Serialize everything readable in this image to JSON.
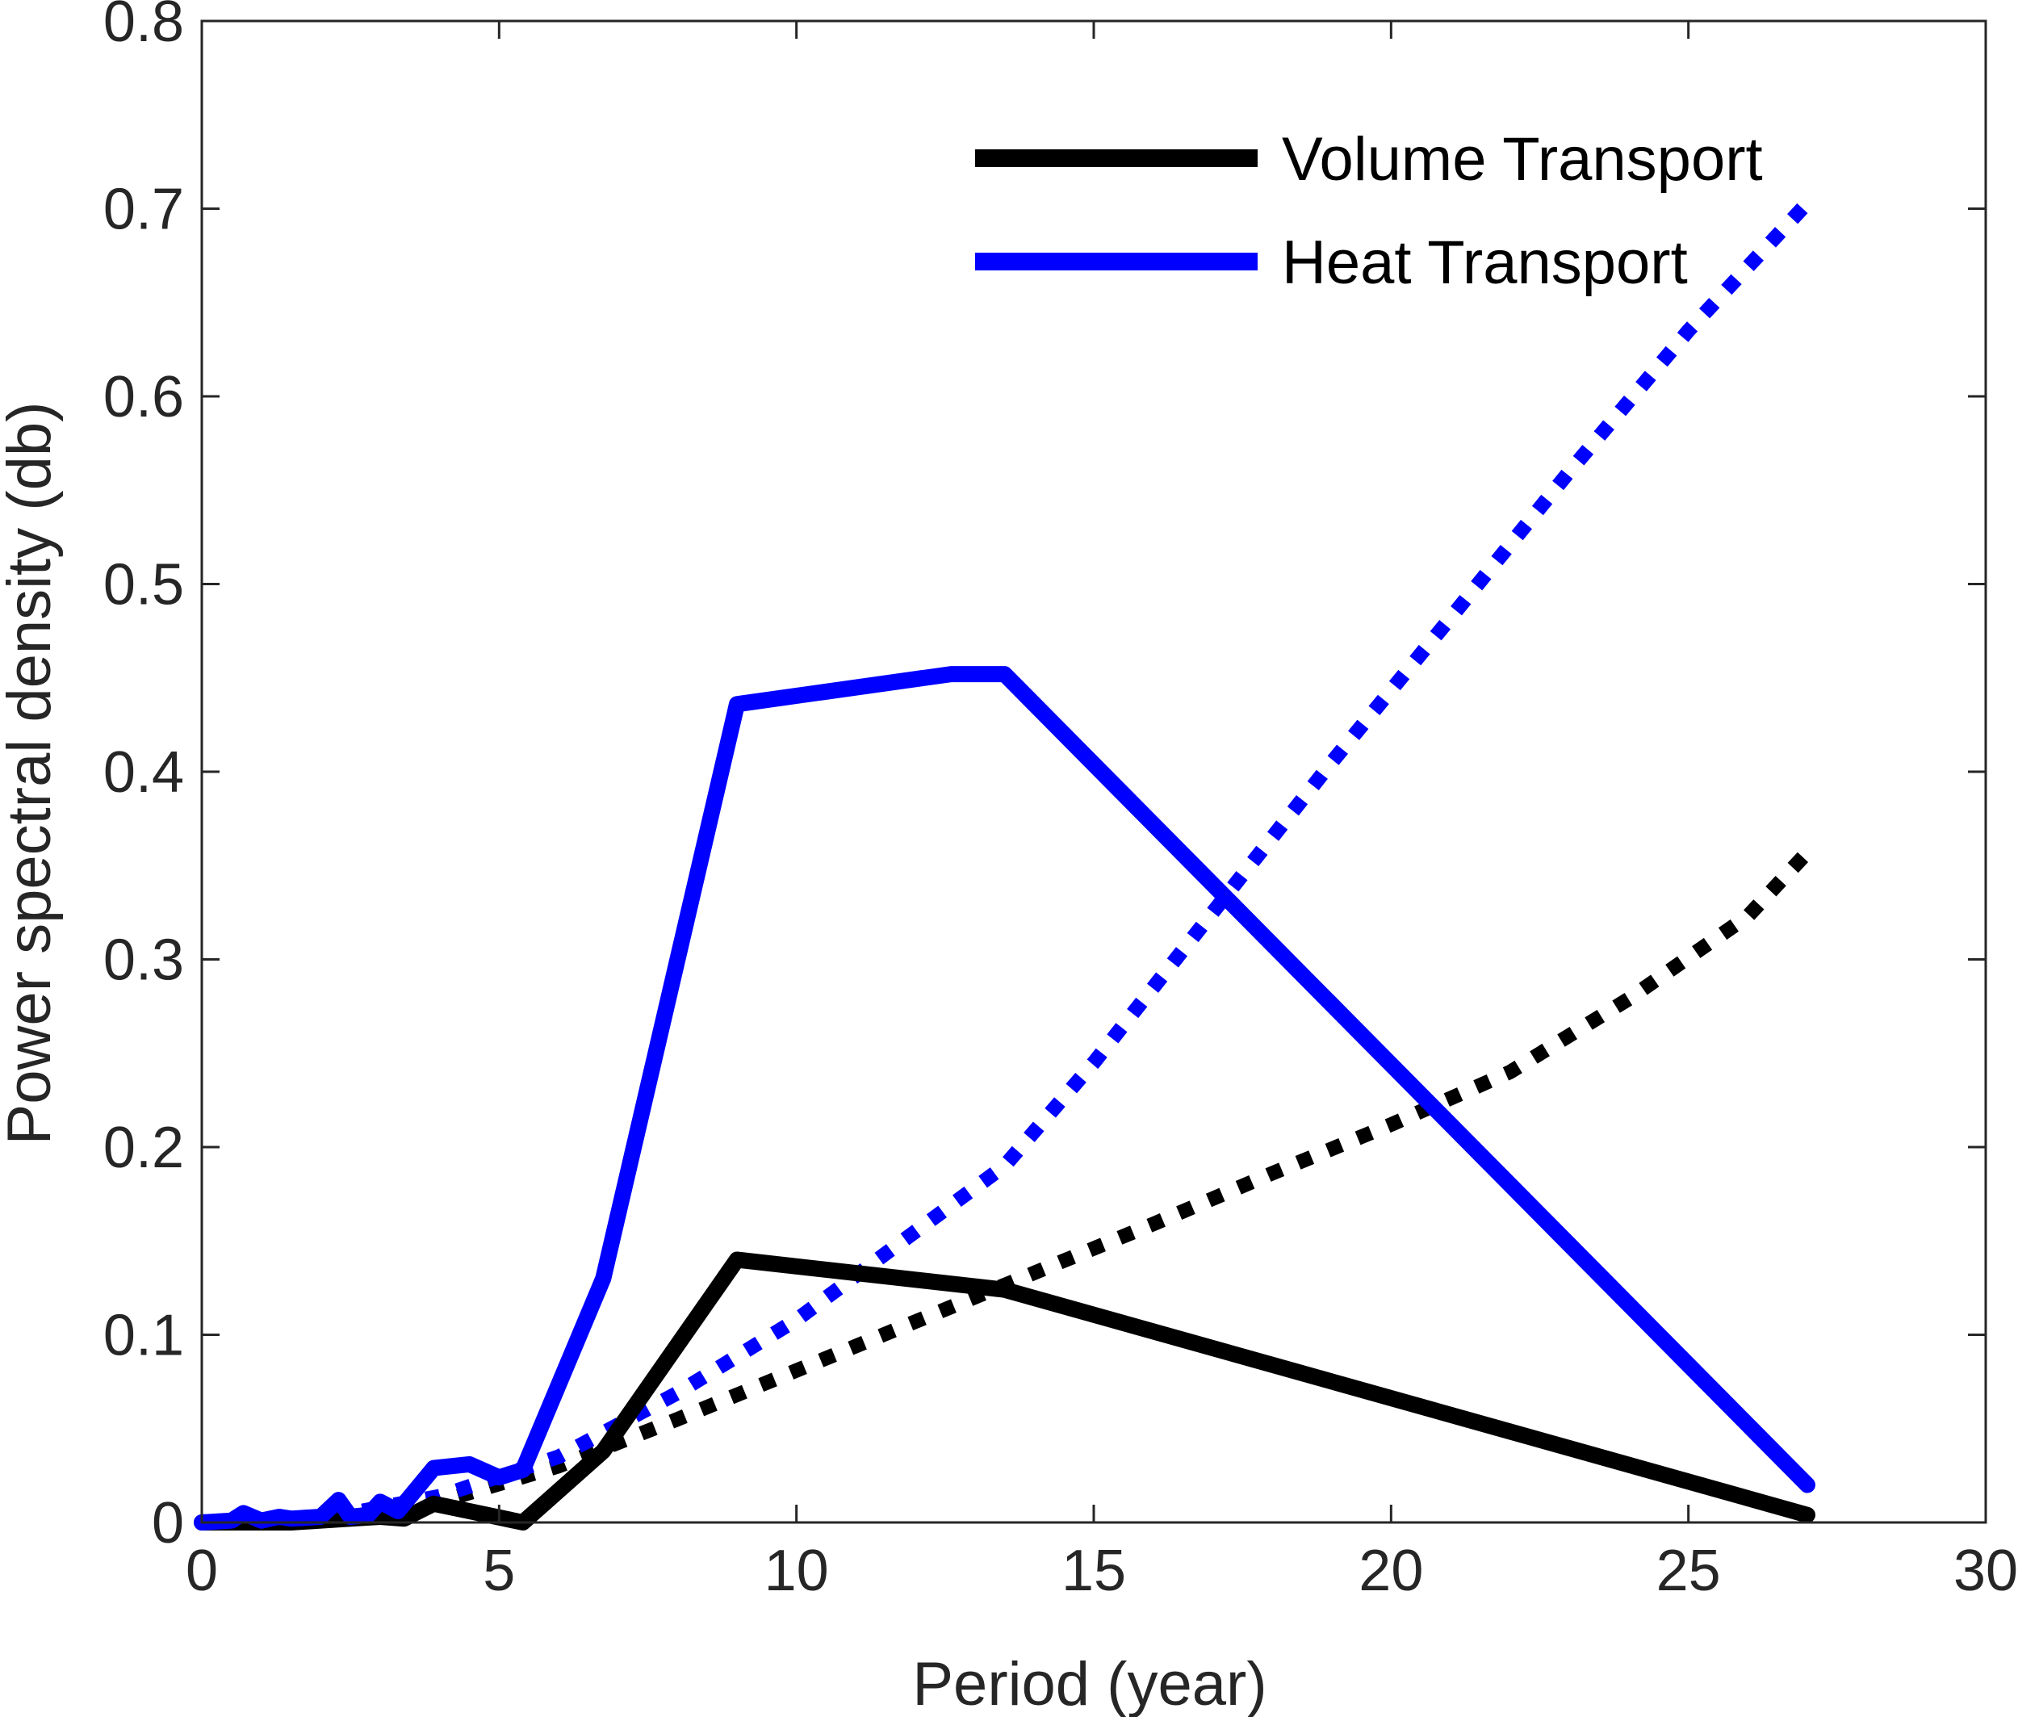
{
  "chart_data": {
    "type": "line",
    "title": "",
    "xlabel": "Period (year)",
    "ylabel": "Power spectral density (db)",
    "xlim": [
      0,
      30
    ],
    "ylim": [
      0,
      0.8
    ],
    "xticks": [
      0,
      5,
      10,
      15,
      20,
      25,
      30
    ],
    "xtick_labels": [
      "0",
      "5",
      "10",
      "15",
      "20",
      "25",
      "30"
    ],
    "yticks": [
      0,
      0.1,
      0.2,
      0.3,
      0.4,
      0.5,
      0.6,
      0.7,
      0.8
    ],
    "ytick_labels": [
      "0",
      "0.1",
      "0.2",
      "0.3",
      "0.4",
      "0.5",
      "0.6",
      "0.7",
      "0.8"
    ],
    "grid": false,
    "legend_position": "top-right",
    "series": [
      {
        "name": "Volume Transport",
        "style": "solid",
        "color": "#000000",
        "in_legend": true,
        "x": [
          0,
          0.5,
          1.0,
          1.5,
          2.0,
          2.5,
          3.0,
          3.4,
          3.9,
          4.5,
          5.4,
          6.75,
          9.0,
          13.5,
          27.0
        ],
        "y": [
          0.0,
          0.0,
          0.0,
          0.0,
          0.001,
          0.002,
          0.003,
          0.002,
          0.01,
          0.006,
          0.0,
          0.038,
          0.14,
          0.124,
          0.004
        ]
      },
      {
        "name": "Heat Transport",
        "style": "solid",
        "color": "#0000ff",
        "in_legend": true,
        "x": [
          0,
          0.5,
          0.7,
          1.0,
          1.3,
          1.5,
          2.0,
          2.3,
          2.5,
          2.8,
          3.0,
          3.3,
          3.9,
          4.5,
          5.0,
          5.4,
          6.75,
          9.0,
          12.6,
          13.5,
          27.0
        ],
        "y": [
          0.0,
          0.001,
          0.005,
          0.001,
          0.003,
          0.002,
          0.003,
          0.012,
          0.003,
          0.004,
          0.011,
          0.006,
          0.029,
          0.031,
          0.024,
          0.028,
          0.13,
          0.436,
          0.452,
          0.452,
          0.02
        ]
      },
      {
        "name": "Volume Transport (dotted)",
        "style": "dotted",
        "color": "#000000",
        "in_legend": false,
        "x": [
          0,
          2,
          4,
          6,
          8,
          10,
          12,
          14,
          16,
          18,
          20,
          22,
          24,
          26,
          27
        ],
        "y": [
          0.0,
          0.003,
          0.011,
          0.03,
          0.055,
          0.081,
          0.107,
          0.133,
          0.159,
          0.186,
          0.212,
          0.24,
          0.279,
          0.323,
          0.357
        ]
      },
      {
        "name": "Heat Transport (dotted)",
        "style": "dotted",
        "color": "#0000ff",
        "in_legend": false,
        "x": [
          0,
          2,
          4,
          6,
          8,
          10,
          12,
          13.5,
          15,
          17,
          19,
          21,
          23,
          25,
          27
        ],
        "y": [
          0.0,
          0.002,
          0.014,
          0.035,
          0.069,
          0.108,
          0.155,
          0.19,
          0.245,
          0.325,
          0.405,
          0.482,
          0.56,
          0.635,
          0.703
        ]
      }
    ]
  }
}
